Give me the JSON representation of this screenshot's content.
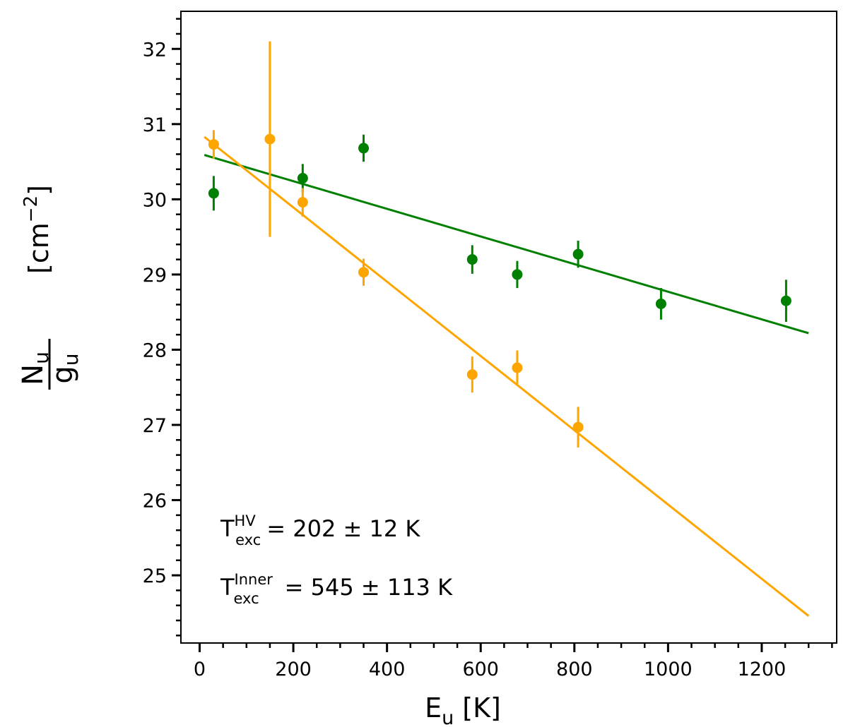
{
  "chart_data": {
    "type": "scatter",
    "title": "",
    "xlabel": {
      "main": "E",
      "sub": "u",
      "unit": "[K]"
    },
    "ylabel": {
      "num_main": "N",
      "num_sub": "u",
      "den_main": "g",
      "den_sub": "u",
      "unit_open": "[cm",
      "unit_sup": "−2",
      "unit_close": "]"
    },
    "xlim": [
      -40,
      1360
    ],
    "ylim": [
      24.1,
      32.5
    ],
    "xticks": [
      0,
      200,
      400,
      600,
      800,
      1000,
      1200
    ],
    "xtick_labels": [
      "0",
      "200",
      "400",
      "600",
      "800",
      "1000",
      "1200"
    ],
    "yticks": [
      25,
      26,
      27,
      28,
      29,
      30,
      31,
      32
    ],
    "ytick_labels": [
      "25",
      "26",
      "27",
      "28",
      "29",
      "30",
      "31",
      "32"
    ],
    "x_minor_step": 50,
    "y_minor_step": 0.2,
    "grid": false,
    "legend": "none",
    "series": [
      {
        "color": "#008000",
        "points": [
          {
            "x": 30,
            "y": 30.08,
            "err": 0.23
          },
          {
            "x": 220,
            "y": 30.28,
            "err": 0.19
          },
          {
            "x": 350,
            "y": 30.68,
            "err": 0.18
          },
          {
            "x": 582,
            "y": 29.2,
            "err": 0.19
          },
          {
            "x": 678,
            "y": 29.0,
            "err": 0.18
          },
          {
            "x": 808,
            "y": 29.27,
            "err": 0.18
          },
          {
            "x": 985,
            "y": 28.61,
            "err": 0.21
          },
          {
            "x": 1252,
            "y": 28.65,
            "err": 0.28
          }
        ],
        "fit": {
          "x": [
            10,
            1300
          ],
          "y": [
            30.59,
            28.22
          ]
        }
      },
      {
        "color": "#FFA500",
        "points": [
          {
            "x": 30,
            "y": 30.73,
            "err": 0.19
          },
          {
            "x": 150,
            "y": 30.8,
            "err": 1.3
          },
          {
            "x": 220,
            "y": 29.96,
            "err": 0.19
          },
          {
            "x": 350,
            "y": 29.03,
            "err": 0.18
          },
          {
            "x": 582,
            "y": 27.67,
            "err": 0.24
          },
          {
            "x": 678,
            "y": 27.76,
            "err": 0.23
          },
          {
            "x": 808,
            "y": 26.97,
            "err": 0.27
          }
        ],
        "fit": {
          "x": [
            10,
            1300
          ],
          "y": [
            30.83,
            24.46
          ]
        }
      }
    ],
    "annotations": [
      {
        "main": "T",
        "sup": "HV",
        "sub": "exc",
        "rest": "= 202 ± 12 K"
      },
      {
        "main": "T",
        "sup": "Inner",
        "sub": "exc",
        "rest": "= 545 ± 113 K"
      }
    ]
  }
}
